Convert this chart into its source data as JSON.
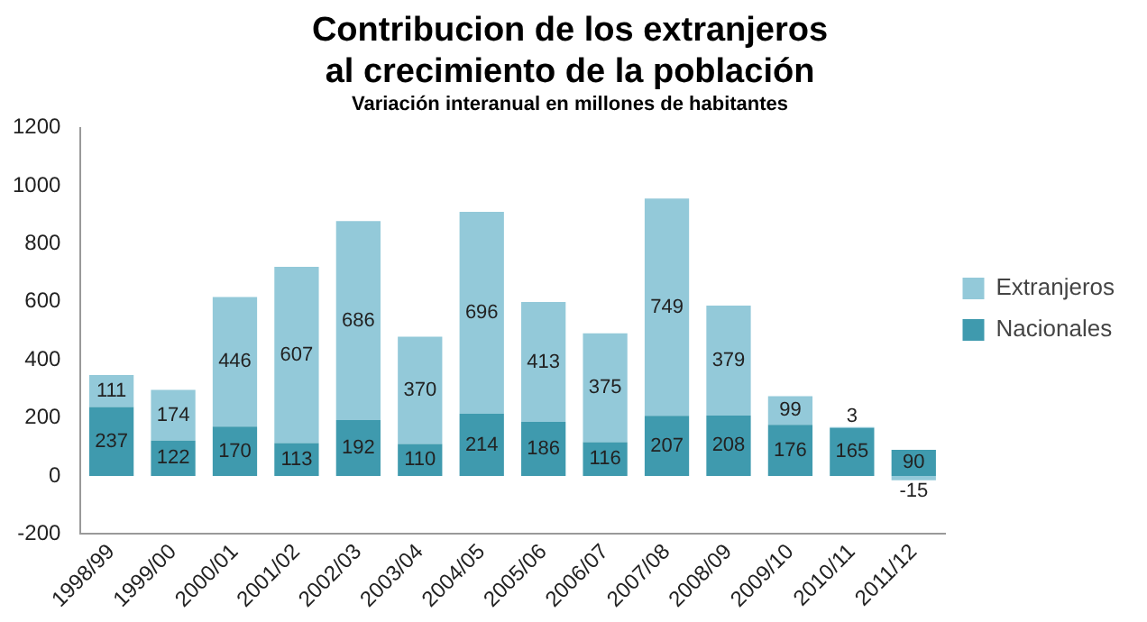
{
  "chart_data": {
    "type": "bar",
    "title": "Contribucion de los extranjeros al crecimiento de la población",
    "subtitle": "Variación interanual en millones de habitantes",
    "categories": [
      "1998/99",
      "1999/00",
      "2000/01",
      "2001/02",
      "2002/03",
      "2003/04",
      "2004/05",
      "2005/06",
      "2006/07",
      "2007/08",
      "2008/09",
      "2009/10",
      "2010/11",
      "2011/12"
    ],
    "series": [
      {
        "name": "Nacionales",
        "color": "#3f9aae",
        "values": [
          237,
          122,
          170,
          113,
          192,
          110,
          214,
          186,
          116,
          207,
          208,
          176,
          165,
          90
        ]
      },
      {
        "name": "Extranjeros",
        "color": "#93c9d9",
        "values": [
          111,
          174,
          446,
          607,
          686,
          370,
          696,
          413,
          375,
          749,
          379,
          99,
          3,
          -15
        ]
      }
    ],
    "stacked": true,
    "ylim": [
      -200,
      1200
    ],
    "yticks": [
      -200,
      0,
      200,
      400,
      600,
      800,
      1000,
      1200
    ],
    "grid": false,
    "legend": "right",
    "data_labels": true
  }
}
